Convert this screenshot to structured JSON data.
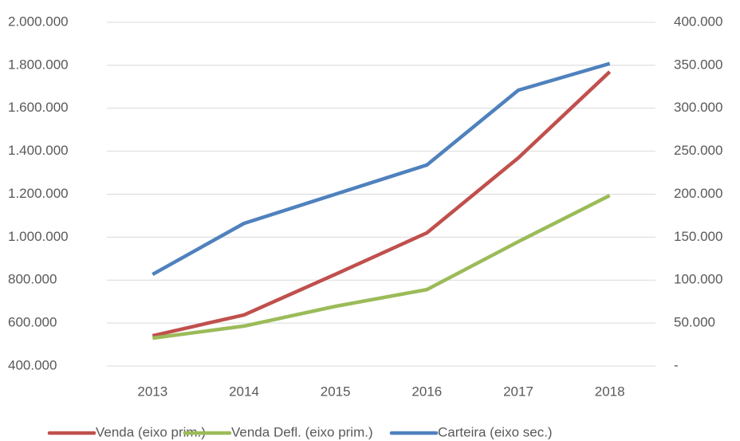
{
  "chart_data": {
    "type": "line",
    "categories": [
      "2013",
      "2014",
      "2015",
      "2016",
      "2017",
      "2018"
    ],
    "series": [
      {
        "name": "Venda (eixo prim.)",
        "color": "#c0504d",
        "values": [
          541000,
          638000,
          827000,
          1020000,
          1369000,
          1770000
        ]
      },
      {
        "name": "Venda Defl. (eixo prim.)",
        "color": "#9bbb59",
        "values": [
          530000,
          586000,
          678000,
          756000,
          979000,
          1194000
        ]
      },
      {
        "name": "Carteira (eixo sec.)",
        "color": "#4f81bd",
        "axis": "y2",
        "values": [
          106700,
          166000,
          200000,
          234000,
          321000,
          352000
        ]
      }
    ],
    "ylim": [
      400000,
      2000000
    ],
    "yticks": [
      {
        "value": 400000,
        "label": "400.000"
      },
      {
        "value": 600000,
        "label": "600.000"
      },
      {
        "value": 800000,
        "label": "800.000"
      },
      {
        "value": 1000000,
        "label": "1.000.000"
      },
      {
        "value": 1200000,
        "label": "1.200.000"
      },
      {
        "value": 1400000,
        "label": "1.400.000"
      },
      {
        "value": 1600000,
        "label": "1.600.000"
      },
      {
        "value": 1800000,
        "label": "1.800.000"
      },
      {
        "value": 2000000,
        "label": "2.000.000"
      }
    ],
    "y2lim": [
      0,
      400000
    ],
    "y2ticks": [
      {
        "value": 0,
        "label": "-"
      },
      {
        "value": 50000,
        "label": "50.000"
      },
      {
        "value": 100000,
        "label": "100.000"
      },
      {
        "value": 150000,
        "label": "150.000"
      },
      {
        "value": 200000,
        "label": "200.000"
      },
      {
        "value": 250000,
        "label": "250.000"
      },
      {
        "value": 300000,
        "label": "300.000"
      },
      {
        "value": 350000,
        "label": "350.000"
      },
      {
        "value": 400000,
        "label": "400.000"
      }
    ],
    "grid": true,
    "legend": "bottom"
  }
}
